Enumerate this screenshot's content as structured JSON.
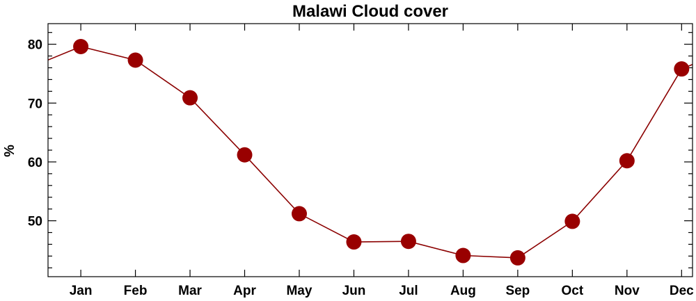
{
  "chart_data": {
    "type": "line",
    "title": "Malawi Cloud cover",
    "ylabel": "%",
    "xlabel": "",
    "categories": [
      "Jan",
      "Feb",
      "Mar",
      "Apr",
      "May",
      "Jun",
      "Jul",
      "Aug",
      "Sep",
      "Oct",
      "Nov",
      "Dec"
    ],
    "series": [
      {
        "values": [
          79.6,
          77.3,
          70.9,
          61.2,
          51.2,
          46.4,
          46.5,
          44.1,
          43.7,
          49.9,
          60.2,
          75.8
        ]
      }
    ],
    "ylim": [
      40.5,
      83.5
    ],
    "yticks": [
      50,
      60,
      70,
      80
    ],
    "ytick_labels": [
      "50",
      "60",
      "70",
      "80"
    ],
    "y_minor_step": 2,
    "grid": false,
    "line_color": "#8b0000",
    "marker_color": "#990000"
  }
}
